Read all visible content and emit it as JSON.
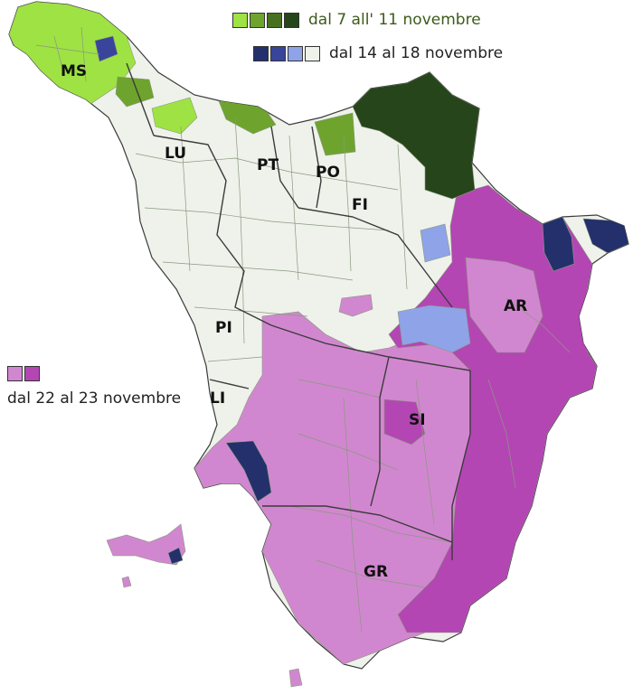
{
  "colors": {
    "water": "#ffffff",
    "base": "#eef2ea",
    "border_fine": "#8a9880",
    "border_main": "#3b3b3b",
    "green_light": "#9fe243",
    "green_mid": "#6ea42d",
    "green_dark": "#47711f",
    "green_darkest": "#27451a",
    "navy": "#23306b",
    "blue": "#39459a",
    "blue_light": "#8fa3e8",
    "pink_light": "#d187cf",
    "pink_dark": "#b446b4"
  },
  "legend": {
    "nov7": {
      "label": "dal 7 all' 11 novembre",
      "swatches": [
        "#9fe243",
        "#6ea42d",
        "#47711f",
        "#27451a"
      ]
    },
    "nov14": {
      "label": "dal 14 al 18 novembre",
      "swatches": [
        "#23306b",
        "#39459a",
        "#8fa3e8",
        "#eef2ea"
      ]
    },
    "nov22": {
      "label": "dal 22 al 23 novembre",
      "swatches": [
        "#d187cf",
        "#b446b4"
      ]
    }
  },
  "provinces": [
    {
      "code": "MS"
    },
    {
      "code": "LU"
    },
    {
      "code": "PT"
    },
    {
      "code": "PO"
    },
    {
      "code": "FI"
    },
    {
      "code": "AR"
    },
    {
      "code": "PI"
    },
    {
      "code": "LI"
    },
    {
      "code": "SI"
    },
    {
      "code": "GR"
    }
  ]
}
